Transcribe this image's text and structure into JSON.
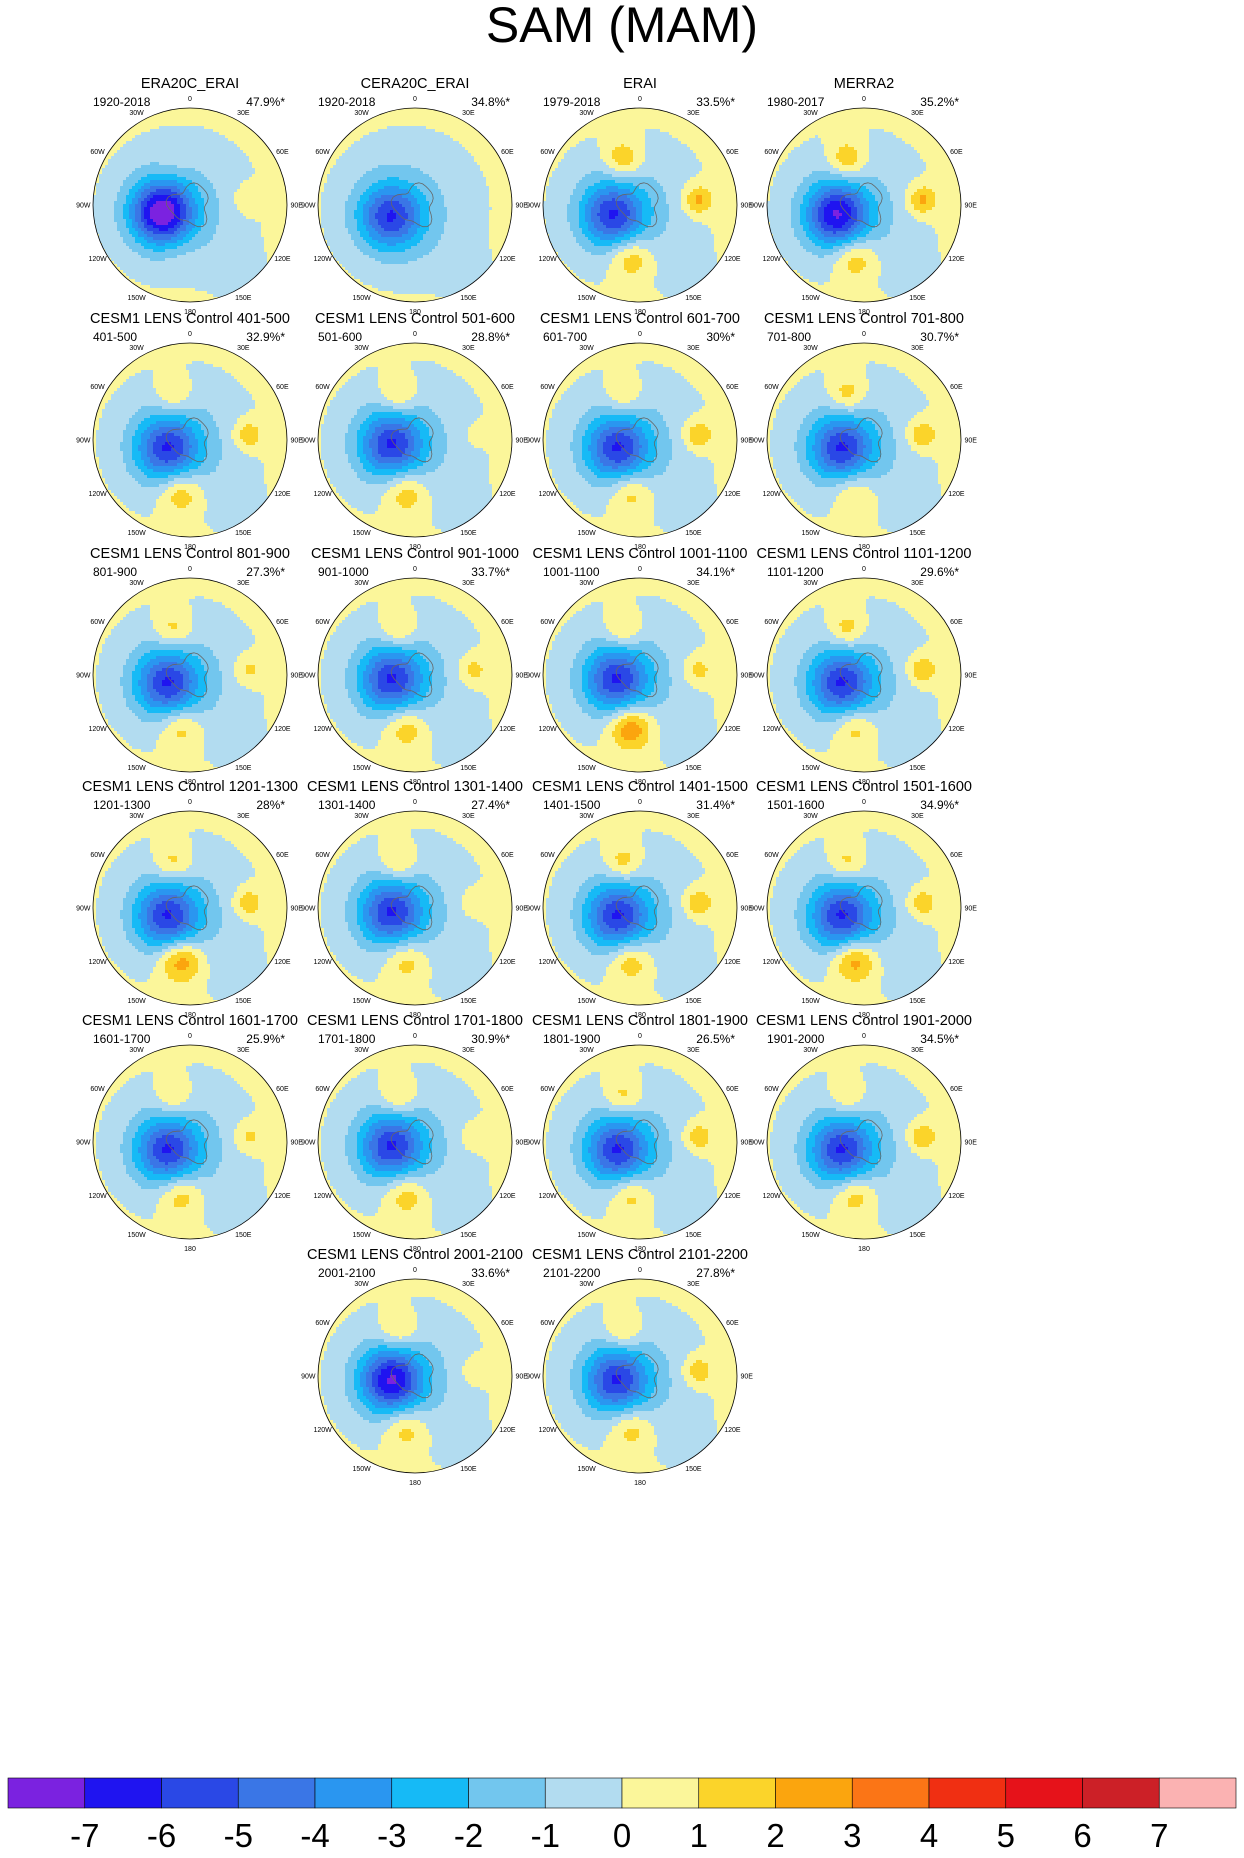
{
  "chart_data": {
    "type": "heatmap",
    "title": "SAM (MAM)",
    "projection": "south polar stereographic",
    "longitude_labels": [
      "0",
      "30E",
      "60E",
      "90E",
      "120E",
      "150E",
      "180",
      "150W",
      "120W",
      "90W",
      "60W",
      "30W"
    ],
    "colorbar": {
      "labels": [
        "-7",
        "-6",
        "-5",
        "-4",
        "-3",
        "-2",
        "-1",
        "0",
        "1",
        "2",
        "3",
        "4",
        "5",
        "6",
        "7"
      ],
      "colors": [
        "#7b22e0",
        "#1f14f0",
        "#2a48e6",
        "#3a76e6",
        "#2a96f0",
        "#16baf6",
        "#72c6ee",
        "#b2dcf0",
        "#fbf69a",
        "#fbd42a",
        "#fba50e",
        "#fb7516",
        "#f02f12",
        "#e6121a",
        "#cc2027",
        "#fbb2b2"
      ]
    },
    "panels": [
      {
        "name": "ERA20C_ERAI",
        "period": "1920-2018",
        "variance": "47.9%*",
        "min_contour": -6,
        "low_lon": 105,
        "low_r": 0.3,
        "pos_a": 0.3,
        "pos_b": 0.7,
        "pos_c": 0.3
      },
      {
        "name": "CERA20C_ERAI",
        "period": "1920-2018",
        "variance": "34.8%*",
        "min_contour": -4,
        "low_lon": 115,
        "low_r": 0.28,
        "pos_a": 0.0,
        "pos_b": 0.0,
        "pos_c": 0.0
      },
      {
        "name": "ERAI",
        "period": "1979-2018",
        "variance": "33.5%*",
        "min_contour": -4,
        "low_lon": 110,
        "low_r": 0.3,
        "pos_a": 1.5,
        "pos_b": 1.5,
        "pos_c": 1.5
      },
      {
        "name": "MERRA2",
        "period": "1980-2017",
        "variance": "35.2%*",
        "min_contour": -5,
        "low_lon": 110,
        "low_r": 0.3,
        "pos_a": 1.5,
        "pos_b": 1.5,
        "pos_c": 1.5
      },
      {
        "name": "CESM1 LENS Control 401-500",
        "period": "401-500",
        "variance": "32.9%*",
        "min_contour": -4,
        "low_lon": 110,
        "low_r": 0.25,
        "pos_a": 1.0,
        "pos_b": 1.2,
        "pos_c": 1.5
      },
      {
        "name": "CESM1 LENS Control 501-600",
        "period": "501-600",
        "variance": "28.8%*",
        "min_contour": -4,
        "low_lon": 100,
        "low_r": 0.25,
        "pos_a": 1.2,
        "pos_b": 0.3,
        "pos_c": 1.4
      },
      {
        "name": "CESM1 LENS Control 601-700",
        "period": "601-700",
        "variance": "30%*",
        "min_contour": -4,
        "low_lon": 110,
        "low_r": 0.25,
        "pos_a": 1.0,
        "pos_b": 1.3,
        "pos_c": 1.3
      },
      {
        "name": "CESM1 LENS Control 701-800",
        "period": "701-800",
        "variance": "30.7%*",
        "min_contour": -4,
        "low_lon": 110,
        "low_r": 0.25,
        "pos_a": 1.3,
        "pos_b": 1.3,
        "pos_c": 1.2
      },
      {
        "name": "CESM1 LENS Control 801-900",
        "period": "801-900",
        "variance": "27.3%*",
        "min_contour": -4,
        "low_lon": 110,
        "low_r": 0.25,
        "pos_a": 1.2,
        "pos_b": 0.9,
        "pos_c": 1.3
      },
      {
        "name": "CESM1 LENS Control 901-1000",
        "period": "901-1000",
        "variance": "33.7%*",
        "min_contour": -4,
        "low_lon": 100,
        "low_r": 0.25,
        "pos_a": 1.2,
        "pos_b": 1.0,
        "pos_c": 1.4
      },
      {
        "name": "CESM1 LENS Control 1001-1100",
        "period": "1001-1100",
        "variance": "34.1%*",
        "min_contour": -4,
        "low_lon": 100,
        "low_r": 0.25,
        "pos_a": 1.2,
        "pos_b": 1.0,
        "pos_c": 2.2
      },
      {
        "name": "CESM1 LENS Control 1101-1200",
        "period": "1101-1200",
        "variance": "29.6%*",
        "min_contour": -4,
        "low_lon": 110,
        "low_r": 0.25,
        "pos_a": 1.3,
        "pos_b": 1.3,
        "pos_c": 1.3
      },
      {
        "name": "CESM1 LENS Control 1201-1300",
        "period": "1201-1300",
        "variance": "28%*",
        "min_contour": -4,
        "low_lon": 110,
        "low_r": 0.25,
        "pos_a": 1.2,
        "pos_b": 1.2,
        "pos_c": 2.1
      },
      {
        "name": "CESM1 LENS Control 1301-1400",
        "period": "1301-1400",
        "variance": "27.4%*",
        "min_contour": -4,
        "low_lon": 100,
        "low_r": 0.25,
        "pos_a": 1.2,
        "pos_b": 0.6,
        "pos_c": 1.3
      },
      {
        "name": "CESM1 LENS Control 1401-1500",
        "period": "1401-1500",
        "variance": "31.4%*",
        "min_contour": -4,
        "low_lon": 110,
        "low_r": 0.25,
        "pos_a": 1.3,
        "pos_b": 1.3,
        "pos_c": 1.5
      },
      {
        "name": "CESM1 LENS Control 1501-1600",
        "period": "1501-1600",
        "variance": "34.9%*",
        "min_contour": -4,
        "low_lon": 110,
        "low_r": 0.25,
        "pos_a": 1.2,
        "pos_b": 1.2,
        "pos_c": 2.0
      },
      {
        "name": "CESM1 LENS Control 1601-1700",
        "period": "1601-1700",
        "variance": "25.9%*",
        "min_contour": -4,
        "low_lon": 110,
        "low_r": 0.25,
        "pos_a": 1.0,
        "pos_b": 0.9,
        "pos_c": 1.4
      },
      {
        "name": "CESM1 LENS Control 1701-1800",
        "period": "1701-1800",
        "variance": "30.9%*",
        "min_contour": -4,
        "low_lon": 100,
        "low_r": 0.25,
        "pos_a": 1.2,
        "pos_b": 0.6,
        "pos_c": 1.4
      },
      {
        "name": "CESM1 LENS Control 1801-1900",
        "period": "1801-1900",
        "variance": "26.5%*",
        "min_contour": -4,
        "low_lon": 110,
        "low_r": 0.25,
        "pos_a": 1.2,
        "pos_b": 1.2,
        "pos_c": 1.3
      },
      {
        "name": "CESM1 LENS Control 1901-2000",
        "period": "1901-2000",
        "variance": "34.5%*",
        "min_contour": -4,
        "low_lon": 110,
        "low_r": 0.25,
        "pos_a": 1.0,
        "pos_b": 1.3,
        "pos_c": 1.4
      },
      {
        "name": "CESM1 LENS Control 2001-2100",
        "period": "2001-2100",
        "variance": "33.6%*",
        "min_contour": -5,
        "low_lon": 100,
        "low_r": 0.25,
        "pos_a": 1.2,
        "pos_b": 0.5,
        "pos_c": 1.3
      },
      {
        "name": "CESM1 LENS Control 2101-2200",
        "period": "2101-2200",
        "variance": "27.8%*",
        "min_contour": -4,
        "low_lon": 100,
        "low_r": 0.25,
        "pos_a": 1.2,
        "pos_b": 1.2,
        "pos_c": 1.3
      }
    ]
  }
}
